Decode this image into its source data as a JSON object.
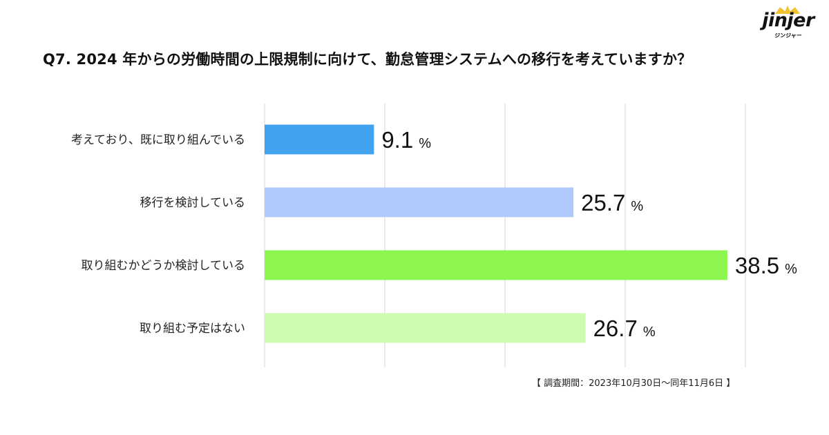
{
  "logo": {
    "name": "jinjer",
    "sub": "ジンジャー"
  },
  "footnote": "【 調査期間：2023年10月30日～同年11月6日 】",
  "chart_data": {
    "type": "bar",
    "orientation": "horizontal",
    "title": "Q7. 2024 年からの労働時間の上限規制に向けて、勤怠管理システムへの移行を考えていますか？",
    "categories": [
      "考えており、既に取り組んでいる",
      "移行を検討している",
      "取り組むかどうか検討している",
      "取り組む予定はない"
    ],
    "values": [
      9.1,
      25.7,
      38.5,
      26.7
    ],
    "unit": "%",
    "colors": [
      "#41a2f0",
      "#b0c9fc",
      "#8df74f",
      "#cffbb0"
    ],
    "xlim": [
      0,
      40
    ],
    "grid": true
  }
}
